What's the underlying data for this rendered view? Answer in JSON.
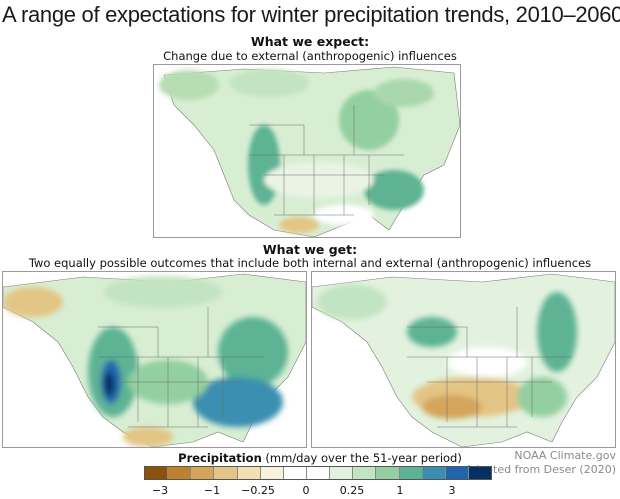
{
  "title": "A range of expectations for winter precipitation trends, 2010–2060",
  "top_section": {
    "heading": "What we expect:",
    "subheading": "Change due to external (anthropogenic) influences"
  },
  "bottom_section": {
    "heading": "What we get:",
    "subheading": "Two equally possible outcomes that include both internal and external (anthropogenic) influences"
  },
  "colorbar": {
    "label_bold": "Precipitation",
    "label_rest": " (mm/day over the 51-year period)",
    "ticks": [
      "−3",
      "−1",
      "−0.25",
      "0",
      "0.25",
      "1",
      "3"
    ],
    "colors": [
      "#8c510a",
      "#bf812d",
      "#d4a55a",
      "#e3c585",
      "#f1e1b0",
      "#f8f1dc",
      "#ffffff",
      "#ffffff",
      "#e3f2df",
      "#c3e4c0",
      "#93cfa0",
      "#5db394",
      "#3a8fb0",
      "#2166ac",
      "#053061"
    ]
  },
  "maps": [
    {
      "name": "expected",
      "panel": "top"
    },
    {
      "name": "outcome-1",
      "panel": "bottom-left"
    },
    {
      "name": "outcome-2",
      "panel": "bottom-right"
    }
  ],
  "credit": {
    "line1": "NOAA Climate.gov",
    "line2": "Adapted from Deser (2020)"
  }
}
